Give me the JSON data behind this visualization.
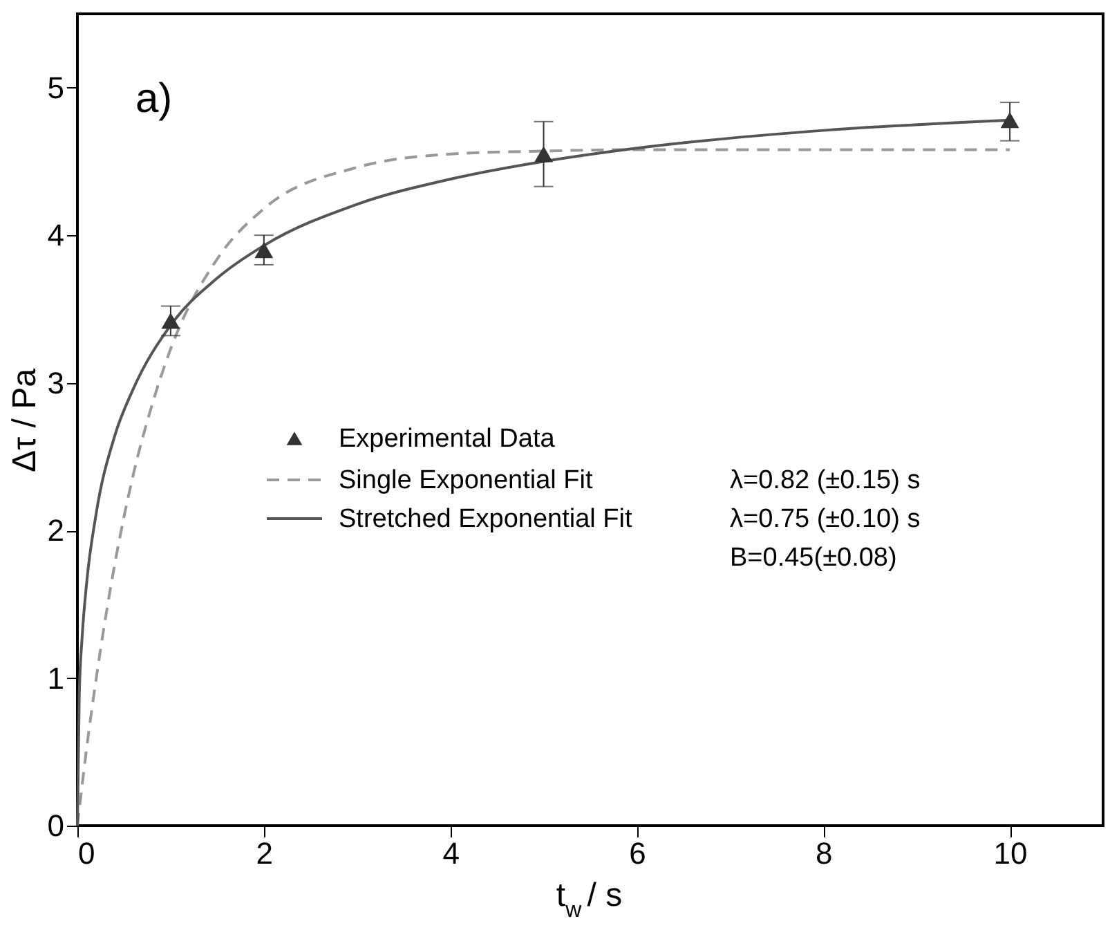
{
  "chart_data": {
    "type": "line",
    "xlabel": "t$_{w}$ / s",
    "ylabel": "Δτ  / Pa",
    "xlim": [
      0,
      11
    ],
    "xticks": [
      0,
      2,
      4,
      6,
      8,
      10
    ],
    "ylim": [
      0,
      5.5
    ],
    "yticks": [
      0,
      1,
      2,
      3,
      4,
      5
    ],
    "grid": false,
    "legend": "left",
    "series": [
      {
        "name": "Experimental Data",
        "type": "scatter",
        "marker": "triangle",
        "color": "#333333",
        "x": [
          1,
          2,
          5,
          10
        ],
        "values": [
          3.42,
          3.9,
          4.55,
          4.78
        ],
        "errors": [
          0.1,
          0.1,
          [
            4.33,
            4.77
          ],
          [
            4.64,
            4.9
          ]
        ]
      },
      {
        "name": "Single Exponential Fit",
        "line_style": "dashed",
        "color": "#999999",
        "x": [
          0,
          0.1,
          0.2,
          0.4,
          0.6,
          0.8,
          1,
          1.5,
          2,
          3,
          4,
          5,
          6,
          8,
          10
        ],
        "values": [
          0,
          0.53,
          0.99,
          1.77,
          2.38,
          2.85,
          3.23,
          3.84,
          4.18,
          4.46,
          4.55,
          4.57,
          4.58,
          4.58,
          4.58
        ]
      },
      {
        "name": "Stretched Exponential Fit",
        "line_style": "solid",
        "color": "#555555",
        "x": [
          0,
          0.02,
          0.05,
          0.1,
          0.2,
          0.4,
          0.6,
          1,
          1.5,
          2,
          3,
          4,
          5,
          6,
          8,
          10
        ],
        "values": [
          0,
          0.89,
          1.27,
          1.65,
          2.11,
          2.64,
          2.96,
          3.39,
          3.71,
          3.93,
          4.21,
          4.38,
          4.5,
          4.59,
          4.71,
          4.78
        ]
      }
    ],
    "annotations": [
      "a)",
      "λ=0.82 (±0.15) s",
      "λ=0.75 (±0.10) s",
      "B=0.45(±0.08)"
    ]
  }
}
